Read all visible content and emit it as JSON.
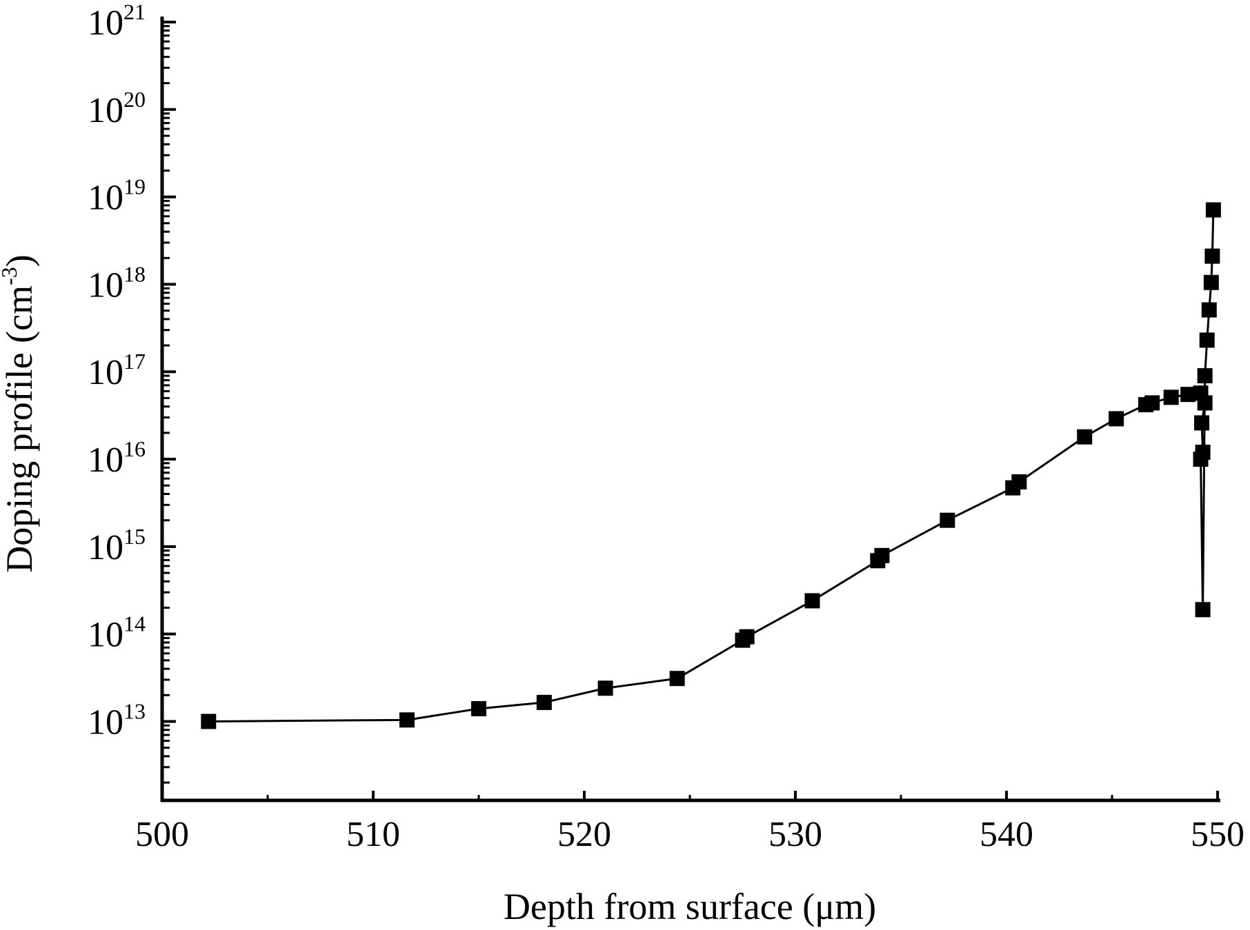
{
  "chart_data": {
    "type": "line",
    "title": "",
    "xlabel": "Depth from surface (μm)",
    "ylabel": "Doping profile (cm⁻³)",
    "ylabel_main": "Doping profile (cm",
    "ylabel_sup": "-3",
    "ylabel_end": ")",
    "xlim": [
      500,
      550
    ],
    "ylim": [
      1250000000000.0,
      1e+21
    ],
    "yscale": "log",
    "grid": false,
    "x_ticks": [
      500,
      510,
      520,
      530,
      540,
      550
    ],
    "x_tick_labels": [
      "500",
      "510",
      "520",
      "530",
      "540",
      "550"
    ],
    "y_tick_exponents": [
      13,
      14,
      15,
      16,
      17,
      18,
      19,
      20,
      21
    ],
    "y_tick_base": "10",
    "series": [
      {
        "name": "Doping profile",
        "marker": "square",
        "color": "#000000",
        "x": [
          502.2,
          511.6,
          515.0,
          518.1,
          521.0,
          524.4,
          527.5,
          527.7,
          530.8,
          533.9,
          534.1,
          537.2,
          540.3,
          540.6,
          543.7,
          545.2,
          546.6,
          546.9,
          547.8,
          548.6,
          549.2,
          549.4,
          549.25,
          549.3,
          549.2,
          549.3,
          549.4,
          549.5,
          549.6,
          549.7,
          549.75,
          549.8
        ],
        "y": [
          10000000000000.0,
          10400000000000.0,
          14000000000000.0,
          16500000000000.0,
          24000000000000.0,
          31000000000000.0,
          85000000000000.0,
          93000000000000.0,
          240000000000000.0,
          690000000000000.0,
          790000000000000.0,
          2000000000000000.0,
          4700000000000000.0,
          5500000000000000.0,
          1.8e+16,
          2.9e+16,
          4.2e+16,
          4.4e+16,
          5.1e+16,
          5.5e+16,
          5.7e+16,
          4.4e+16,
          2.6e+16,
          1.2e+16,
          1e+16,
          190000000000000.0,
          9e+16,
          2.3e+17,
          5.1e+17,
          1.05e+18,
          2.1e+18,
          7.1e+18
        ]
      }
    ]
  }
}
